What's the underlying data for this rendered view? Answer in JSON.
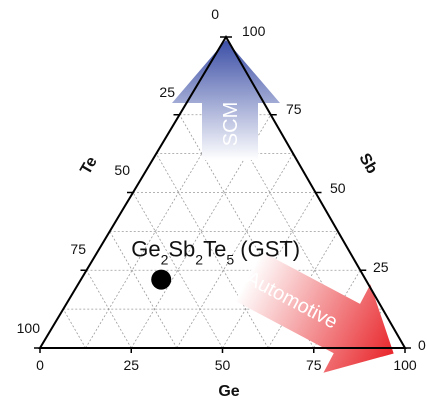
{
  "chart_data": {
    "type": "scatter",
    "subtype": "ternary",
    "axes": {
      "bottom": {
        "label": "Ge",
        "ticks": [
          "0",
          "25",
          "50",
          "75",
          "100"
        ]
      },
      "right": {
        "label": "Sb",
        "ticks": [
          "0",
          "25",
          "50",
          "75",
          "100"
        ]
      },
      "left": {
        "label": "Te",
        "ticks": [
          "0",
          "25",
          "50",
          "75",
          "100"
        ]
      }
    },
    "grid": true,
    "points": [
      {
        "label": "GST",
        "display": {
          "base": [
            "Ge",
            "Sb",
            "Te",
            " (GST)"
          ],
          "subs": [
            "2",
            "2",
            "5"
          ]
        },
        "Ge": 22,
        "Sb": 22,
        "Te": 56
      }
    ],
    "arrows": [
      {
        "label": "SCM",
        "direction": "toward Sb apex",
        "color": "#3b4ea6"
      },
      {
        "label": "Automotive",
        "direction": "toward Ge corner",
        "color": "#e8262b"
      }
    ]
  },
  "colors": {
    "scm_arrow": "#3b4ea6",
    "auto_arrow": "#e8262b",
    "grid": "#9a9a9a",
    "frame": "#000000"
  }
}
